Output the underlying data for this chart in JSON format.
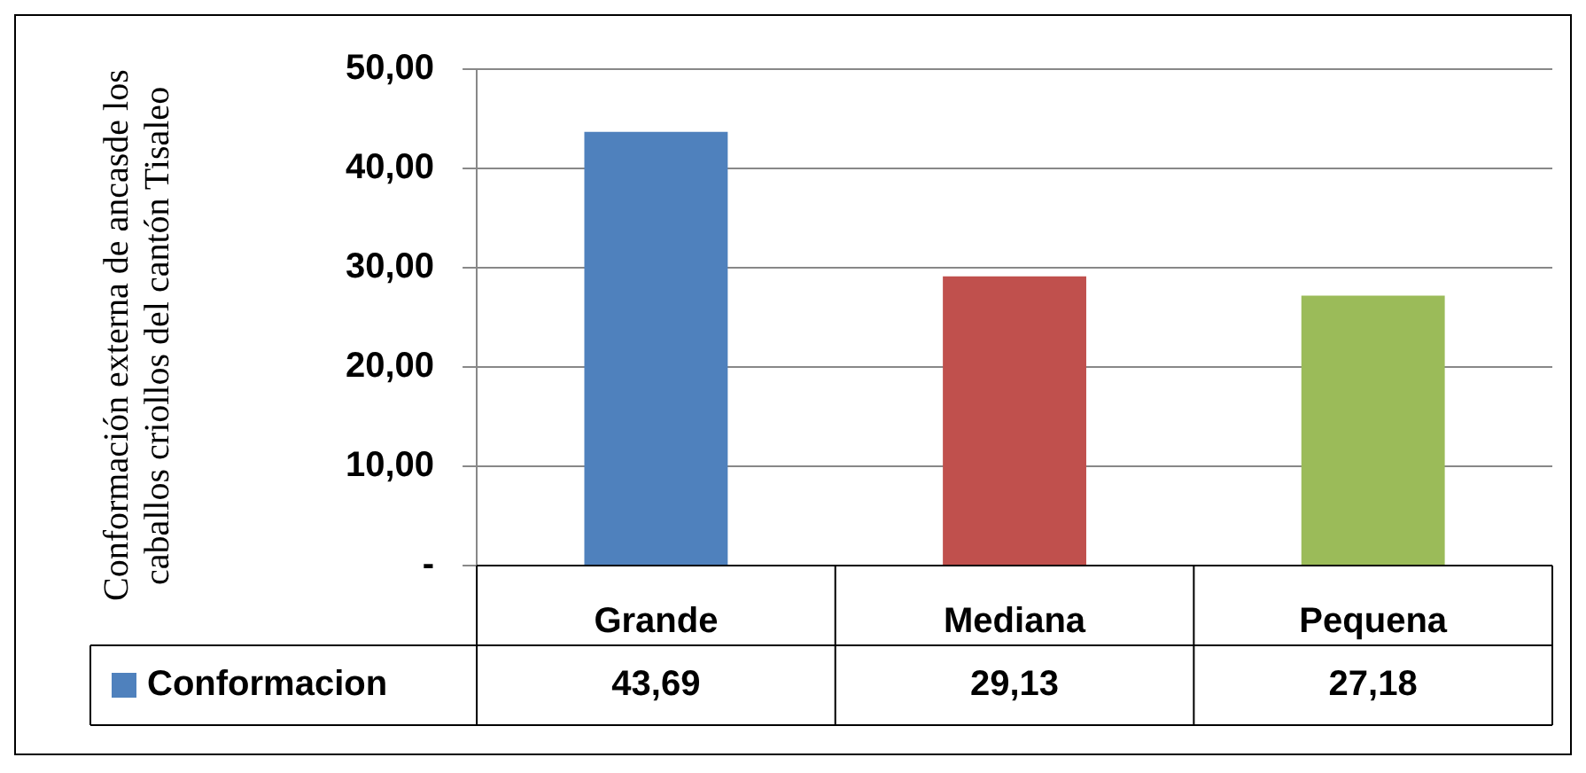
{
  "chart_data": {
    "type": "bar",
    "ylabel": "Conformación externa de ancasde los caballos criollos del cantón Tisaleo",
    "categories": [
      "Grande",
      "Mediana",
      "Pequena"
    ],
    "series": [
      {
        "name": "Conformacion",
        "color": "#4f81bd",
        "colors": [
          "#4f81bd",
          "#c0504d",
          "#9bbb59"
        ],
        "values": [
          43.69,
          29.13,
          27.18
        ],
        "value_labels": [
          "43,69",
          "29,13",
          "27,18"
        ]
      }
    ],
    "ylim": [
      0,
      50
    ],
    "yticks": [
      {
        "value": 0,
        "label": "-"
      },
      {
        "value": 10,
        "label": "10,00"
      },
      {
        "value": 20,
        "label": "20,00"
      },
      {
        "value": 30,
        "label": "30,00"
      },
      {
        "value": 40,
        "label": "40,00"
      },
      {
        "value": 50,
        "label": "50,00"
      }
    ],
    "grid": "y",
    "legend": "bottom"
  }
}
